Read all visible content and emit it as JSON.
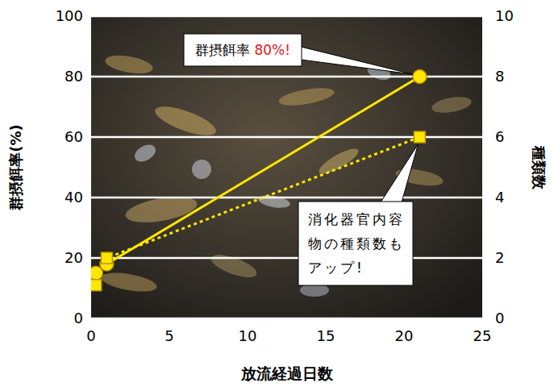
{
  "chart_data": {
    "type": "line",
    "x_label": "放流経過日数",
    "y_label": "群摂餌率(%)",
    "y2_label": "種類数",
    "x": [
      0.3,
      1,
      21
    ],
    "series": [
      {
        "values": [
          15,
          18,
          80
        ],
        "color": "#ffe600",
        "marker": "circle",
        "line_style": "solid"
      },
      {
        "values": [
          1.1,
          2,
          6
        ],
        "color": "#ffe600",
        "marker": "square",
        "line_style": "dotted",
        "axis": "y2"
      }
    ],
    "xlim": [
      0,
      25
    ],
    "xticks": [
      0,
      5,
      10,
      15,
      20,
      25
    ],
    "ylim": [
      0,
      100
    ],
    "yticks": [
      0,
      20,
      40,
      60,
      80,
      100
    ],
    "y2lim": [
      0,
      10
    ],
    "y2ticks": [
      0,
      2,
      4,
      6,
      8,
      10
    ],
    "grid": true,
    "annotations": [
      {
        "text": "群摂餌率 80%!"
      },
      {
        "text": "消化器官内容物の種類数もアップ!"
      }
    ]
  }
}
